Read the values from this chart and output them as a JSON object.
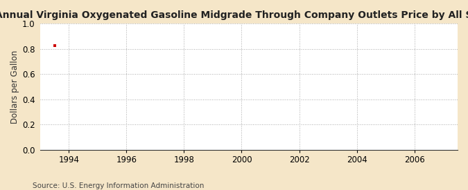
{
  "title": "Annual Virginia Oxygenated Gasoline Midgrade Through Company Outlets Price by All Sellers",
  "ylabel": "Dollars per Gallon",
  "source_text": "Source: U.S. Energy Information Administration",
  "background_color": "#f5e6c8",
  "plot_bg_color": "#ffffff",
  "xlim": [
    1993.0,
    2007.5
  ],
  "ylim": [
    0.0,
    1.0
  ],
  "xticks": [
    1994,
    1996,
    1998,
    2000,
    2002,
    2004,
    2006
  ],
  "yticks": [
    0.0,
    0.2,
    0.4,
    0.6,
    0.8,
    1.0
  ],
  "data_x": [
    1993.5
  ],
  "data_y": [
    0.827
  ],
  "data_color": "#cc0000",
  "grid_color": "#aaaaaa",
  "title_fontsize": 10,
  "axis_fontsize": 8.5,
  "tick_fontsize": 8.5,
  "source_fontsize": 7.5
}
